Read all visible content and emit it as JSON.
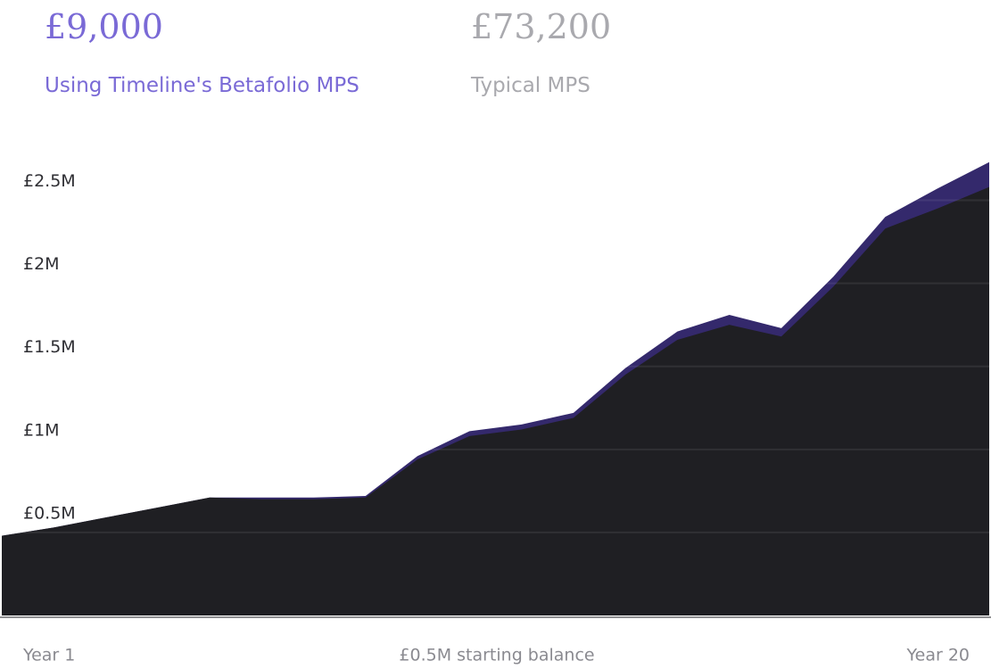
{
  "summary": [
    {
      "value": "£9,000",
      "label": "Using Timeline's Betafolio MPS"
    },
    {
      "value": "£73,200",
      "label": "Typical MPS"
    }
  ],
  "chart_data": {
    "type": "area",
    "categories": [
      "Year 1",
      null,
      null,
      null,
      null,
      null,
      null,
      null,
      null,
      null,
      null,
      null,
      null,
      null,
      null,
      null,
      null,
      null,
      null,
      "Year 20"
    ],
    "annotation": "£0.5M starting balance",
    "series": [
      {
        "name": "Using Timeline's Betafolio MPS",
        "color": "#34296c",
        "values": [
          0.48,
          0.53,
          0.59,
          0.65,
          0.71,
          0.71,
          0.71,
          0.72,
          0.96,
          1.11,
          1.15,
          1.22,
          1.49,
          1.71,
          1.81,
          1.73,
          2.04,
          2.4,
          2.57,
          2.73
        ]
      },
      {
        "name": "Typical MPS",
        "color": "#1f1f23",
        "values": [
          0.48,
          0.53,
          0.59,
          0.65,
          0.71,
          0.7,
          0.7,
          0.71,
          0.94,
          1.08,
          1.12,
          1.19,
          1.45,
          1.66,
          1.75,
          1.68,
          1.98,
          2.33,
          2.45,
          2.58
        ]
      }
    ],
    "ylim": [
      0,
      2.75
    ],
    "yticks": [
      {
        "value": 0.5,
        "label": "£0.5M"
      },
      {
        "value": 1,
        "label": "£1M"
      },
      {
        "value": 1.5,
        "label": "£1.5M"
      },
      {
        "value": 2,
        "label": "£2M"
      },
      {
        "value": 2.5,
        "label": "£2.5M"
      }
    ],
    "grid": true
  }
}
